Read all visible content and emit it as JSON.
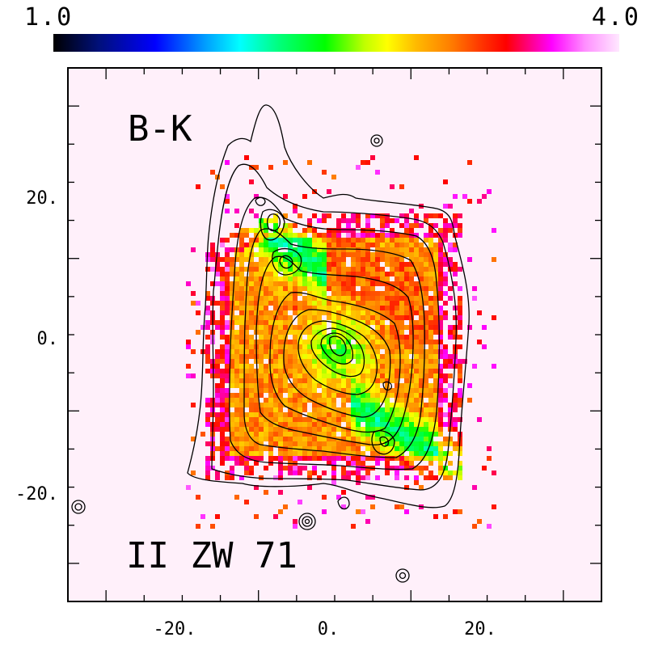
{
  "colorbar": {
    "min_label": "1.0",
    "max_label": "4.0"
  },
  "plot": {
    "filter_label": "B-K",
    "object_label": "II ZW 71",
    "x_ticks": [
      "-20.",
      "0.",
      "20."
    ],
    "y_ticks": [
      "20.",
      "0.",
      "-20."
    ],
    "background_color": "#fff0fa"
  }
}
